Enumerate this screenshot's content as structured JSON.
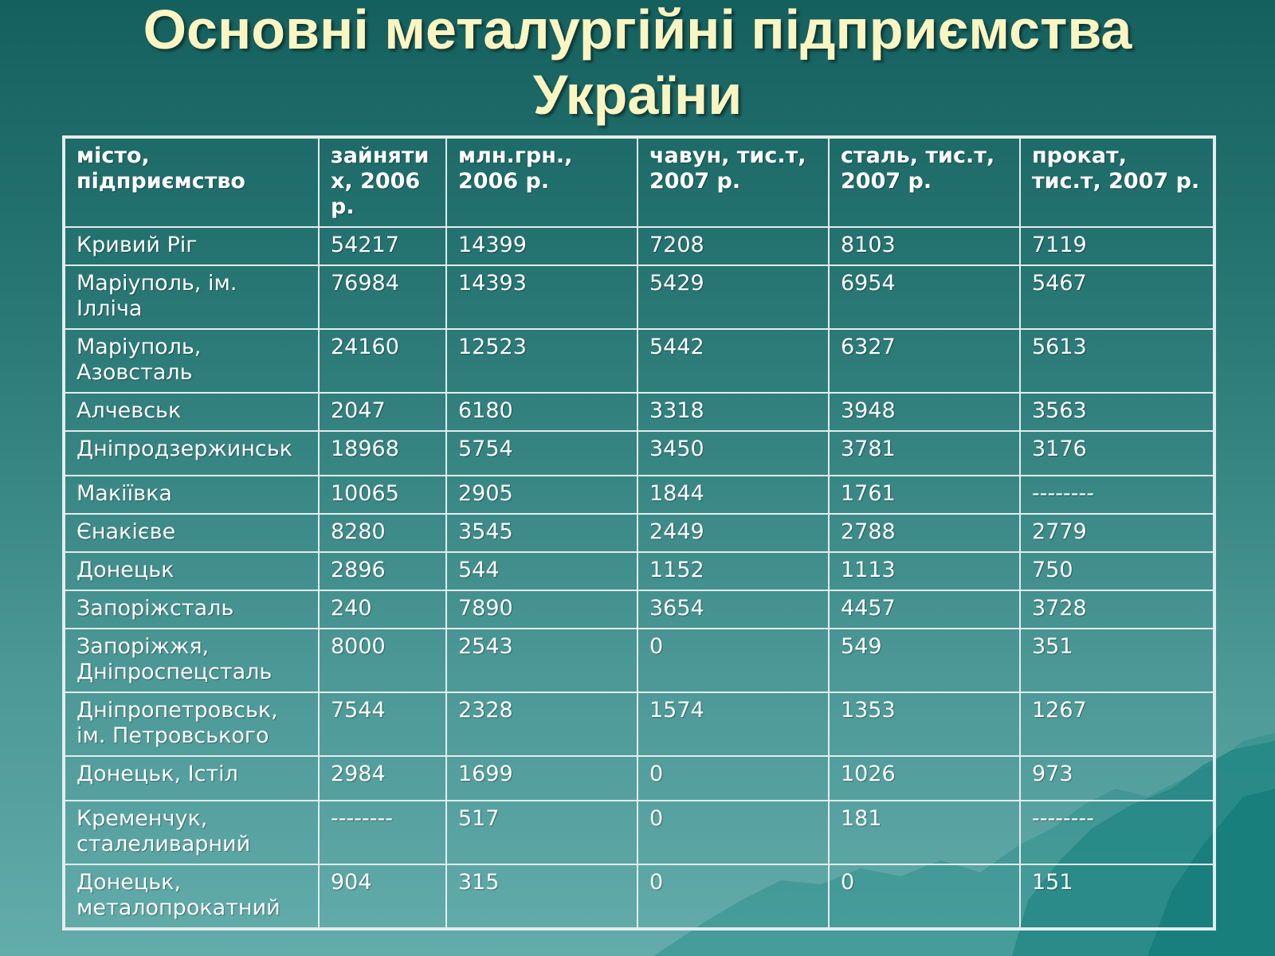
{
  "title": {
    "line1": "Основні металургійні підприємства",
    "line2": "України"
  },
  "table": {
    "headers": [
      "місто, підприємство",
      "зайняти х, 2006 р.",
      "млн.грн., 2006 р.",
      "чавун, тис.т, 2007 р.",
      "сталь, тис.т, 2007 р.",
      "прокат, тис.т, 2007 р."
    ],
    "rows": [
      [
        "Кривий Ріг",
        "54217",
        "14399",
        "7208",
        "8103",
        "7119"
      ],
      [
        "Маріуполь, ім. Ілліча",
        "76984",
        "14393",
        "5429",
        "6954",
        "5467"
      ],
      [
        "Маріуполь, Азовсталь",
        "24160",
        "12523",
        "5442",
        "6327",
        "5613"
      ],
      [
        "Алчевськ",
        "2047",
        "6180",
        "3318",
        "3948",
        "3563"
      ],
      [
        "Дніпродзержинськ",
        "18968",
        "5754",
        "3450",
        "3781",
        "3176"
      ],
      [
        "Макіївка",
        "10065",
        "2905",
        "1844",
        "1761",
        "--------"
      ],
      [
        "Єнакієве",
        "8280",
        "3545",
        "2449",
        "2788",
        "2779"
      ],
      [
        "Донецьк",
        "2896",
        "544",
        "1152",
        "1113",
        "750"
      ],
      [
        "Запоріжсталь",
        "240",
        "7890",
        "3654",
        "4457",
        "3728"
      ],
      [
        "Запоріжжя, Дніпроспецсталь",
        "8000",
        "2543",
        "0",
        "549",
        "351"
      ],
      [
        "Дніпропетровськ, ім. Петровського",
        "7544",
        "2328",
        "1574",
        "1353",
        "1267"
      ],
      [
        "Донецьк, Істіл",
        "2984",
        "1699",
        "0",
        "1026",
        "973"
      ],
      [
        "Кременчук, сталеливарний",
        "--------",
        "517",
        "0",
        "181",
        "--------"
      ],
      [
        "Донецьк, металопрокатний",
        "904",
        "315",
        "0",
        "0",
        "151"
      ]
    ]
  },
  "colors": {
    "title": "#fbf5c2",
    "text": "#ffffff",
    "grid": "#e4ecec",
    "background_top": "#14605e",
    "background_bottom": "#63acab"
  }
}
